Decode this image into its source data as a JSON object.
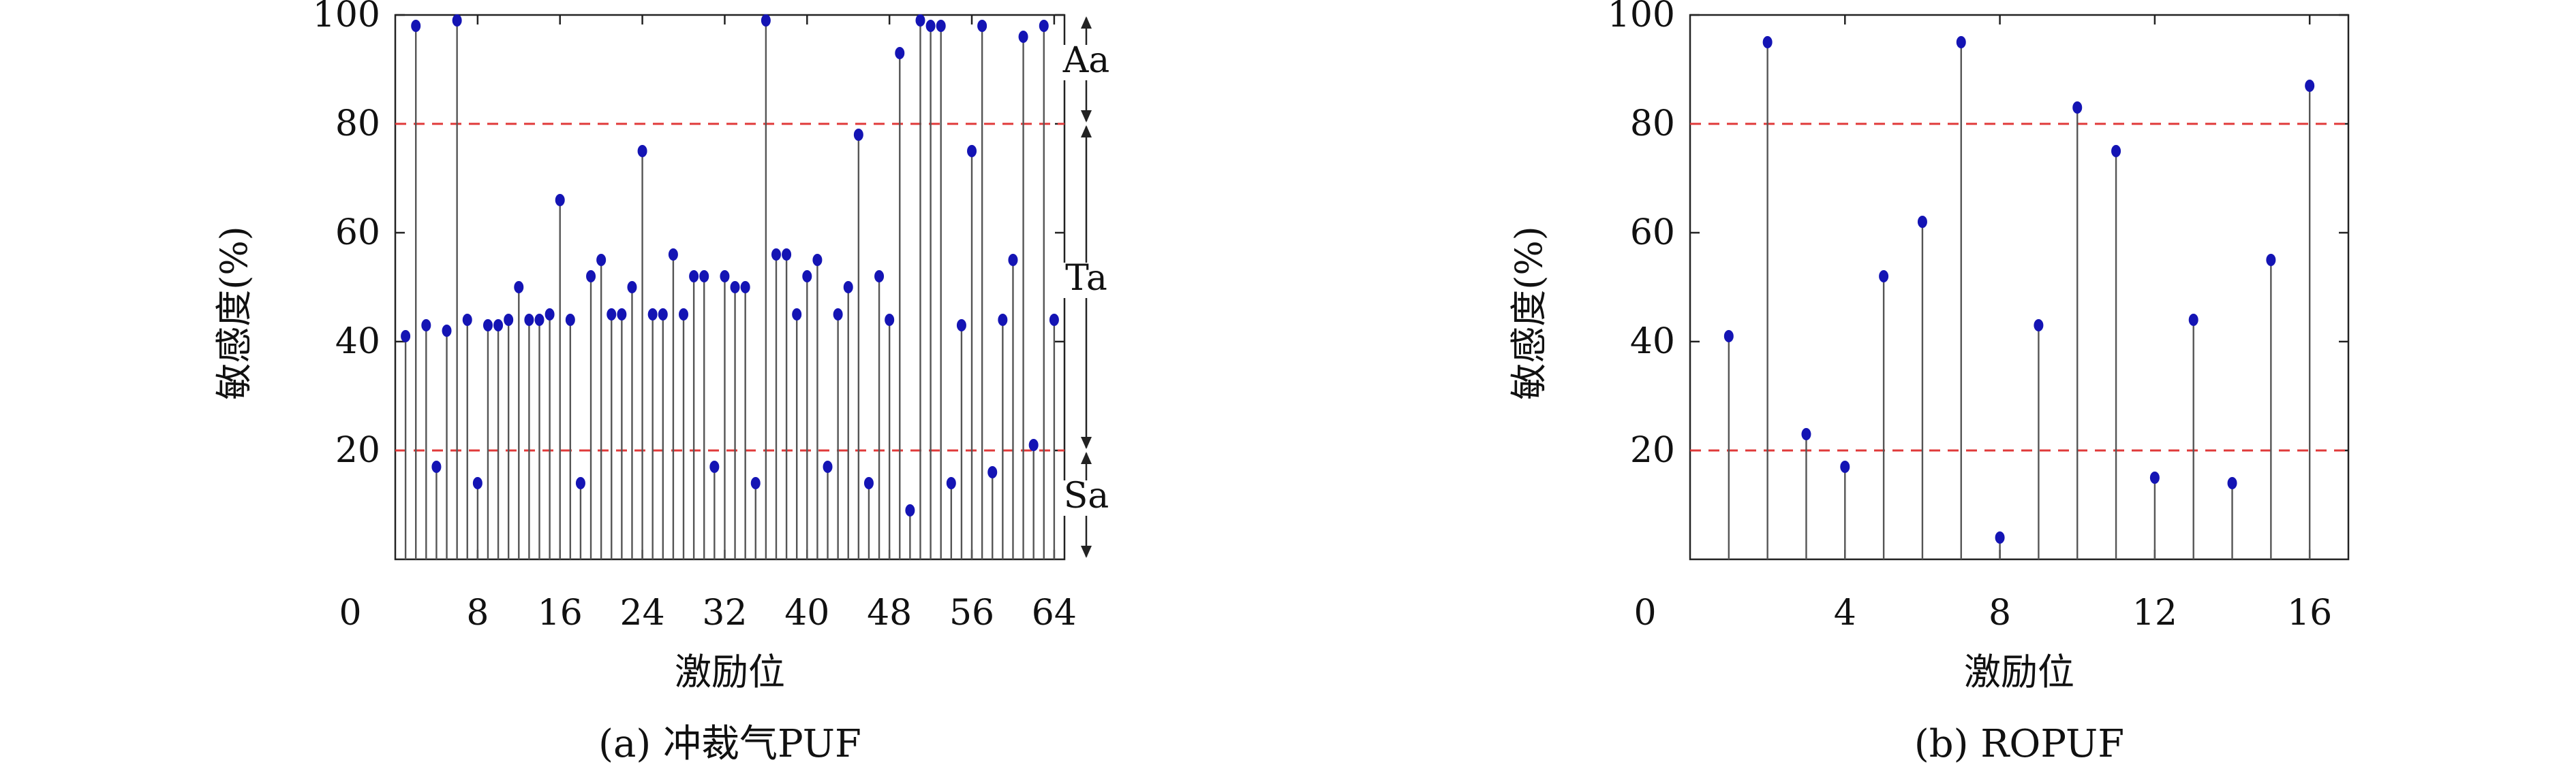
{
  "colors": {
    "stem": "#555555",
    "point": "#1414b4",
    "threshold": "#e03a3a",
    "axis": "#222222"
  },
  "chart_data": [
    {
      "type": "stem",
      "caption": "(a) 冲裁气PUF",
      "xlabel": "激励位",
      "ylabel": "敏感度(%)",
      "xlim": [
        0,
        65
      ],
      "ylim": [
        0,
        100
      ],
      "xticks": [
        0,
        8,
        16,
        24,
        32,
        40,
        48,
        56,
        64
      ],
      "yticks": [
        20,
        40,
        60,
        80,
        100
      ],
      "thresholds": [
        80,
        20
      ],
      "regions": [
        {
          "label": "Aa",
          "from": 80,
          "to": 100
        },
        {
          "label": "Ta",
          "from": 20,
          "to": 80
        },
        {
          "label": "Sa",
          "from": 0,
          "to": 20
        }
      ],
      "x": [
        1,
        2,
        3,
        4,
        5,
        6,
        7,
        8,
        9,
        10,
        11,
        12,
        13,
        14,
        15,
        16,
        17,
        18,
        19,
        20,
        21,
        22,
        23,
        24,
        25,
        26,
        27,
        28,
        29,
        30,
        31,
        32,
        33,
        34,
        35,
        36,
        37,
        38,
        39,
        40,
        41,
        42,
        43,
        44,
        45,
        46,
        47,
        48,
        49,
        50,
        51,
        52,
        53,
        54,
        55,
        56,
        57,
        58,
        59,
        60,
        61,
        62,
        63,
        64
      ],
      "y": [
        41,
        98,
        43,
        17,
        42,
        99,
        44,
        14,
        43,
        43,
        44,
        50,
        44,
        44,
        45,
        66,
        44,
        14,
        52,
        55,
        45,
        45,
        50,
        75,
        45,
        45,
        56,
        45,
        52,
        52,
        17,
        52,
        50,
        50,
        14,
        99,
        56,
        56,
        45,
        52,
        55,
        17,
        45,
        50,
        78,
        14,
        52,
        44,
        93,
        9,
        99,
        98,
        98,
        14,
        43,
        75,
        98,
        16,
        44,
        55,
        96,
        21,
        98,
        44
      ]
    },
    {
      "type": "stem",
      "caption": "(b) ROPUF",
      "xlabel": "激励位",
      "ylabel": "敏感度(%)",
      "xlim": [
        0,
        17
      ],
      "ylim": [
        0,
        100
      ],
      "xticks": [
        0,
        4,
        8,
        12,
        16
      ],
      "yticks": [
        20,
        40,
        60,
        80,
        100
      ],
      "thresholds": [
        80,
        20
      ],
      "x": [
        1,
        2,
        3,
        4,
        5,
        6,
        7,
        8,
        9,
        10,
        11,
        12,
        13,
        14,
        15,
        16
      ],
      "y": [
        41,
        95,
        23,
        17,
        52,
        62,
        95,
        4,
        43,
        83,
        75,
        15,
        44,
        14,
        55,
        87
      ]
    }
  ]
}
